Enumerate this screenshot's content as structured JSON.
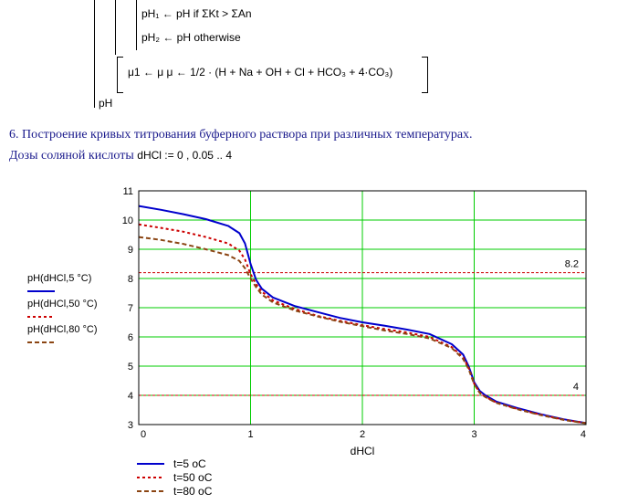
{
  "formula": {
    "line1": "pH₁ ← pH   if   ΣKt > ΣAn",
    "line2": "pH₂ ← pH   otherwise",
    "line3": "μ1 ← μ   μ ← 1/2 · (H + Na + OH + Cl + HCO₃ + 4·CO₃)",
    "result": "pH"
  },
  "section": {
    "heading": "6. Построение кривых титрования буферного раствора при различных температурах.",
    "doses_label": "Дозы соляной кислоты",
    "doses_math": "dHCl := 0 , 0.05 .. 4"
  },
  "colors": {
    "grid": "#00cc00",
    "series_5": "#0000cc",
    "series_50": "#cc0000",
    "series_80": "#8b4513",
    "ref_line": "#cc0000"
  },
  "chart_data": {
    "type": "line",
    "xlabel": "dHCl",
    "ylabel": "",
    "xlim": [
      0,
      4
    ],
    "ylim": [
      3,
      11
    ],
    "x_ticks": [
      "0",
      "1",
      "2",
      "3",
      "4"
    ],
    "y_ticks": [
      "3",
      "4",
      "5",
      "6",
      "7",
      "8",
      "9",
      "10",
      "11"
    ],
    "grid": true,
    "y_trace_labels": [
      "pH(dHCl,5 °C)",
      "pH(dHCl,50 °C)",
      "pH(dHCl,80 °C)"
    ],
    "legend_position": "bottom-left",
    "legend_labels": [
      "t=5 oC",
      "t=50 oC",
      "t=80 oC"
    ],
    "reference_lines": [
      {
        "y": 8.2,
        "label": "8.2"
      },
      {
        "y": 4,
        "label": "4"
      }
    ],
    "x": [
      0,
      0.2,
      0.4,
      0.6,
      0.8,
      0.9,
      0.95,
      1.0,
      1.05,
      1.1,
      1.2,
      1.4,
      1.6,
      1.8,
      2.0,
      2.2,
      2.4,
      2.6,
      2.8,
      2.9,
      2.95,
      3.0,
      3.05,
      3.1,
      3.2,
      3.4,
      3.6,
      3.8,
      4.0
    ],
    "series": [
      {
        "name": "t=5 oC",
        "values": [
          10.48,
          10.35,
          10.2,
          10.03,
          9.8,
          9.55,
          9.2,
          8.5,
          7.95,
          7.65,
          7.35,
          7.05,
          6.85,
          6.65,
          6.5,
          6.38,
          6.25,
          6.1,
          5.75,
          5.4,
          5.0,
          4.45,
          4.15,
          4.0,
          3.78,
          3.55,
          3.35,
          3.18,
          3.05
        ]
      },
      {
        "name": "t=50 oC",
        "values": [
          9.85,
          9.73,
          9.6,
          9.42,
          9.2,
          8.95,
          8.65,
          8.15,
          7.8,
          7.55,
          7.25,
          6.95,
          6.72,
          6.55,
          6.4,
          6.27,
          6.15,
          6.0,
          5.65,
          5.3,
          4.95,
          4.4,
          4.1,
          3.95,
          3.75,
          3.52,
          3.33,
          3.17,
          3.05
        ]
      },
      {
        "name": "t=80 oC",
        "values": [
          9.42,
          9.32,
          9.18,
          9.0,
          8.8,
          8.6,
          8.35,
          8.0,
          7.7,
          7.45,
          7.18,
          6.9,
          6.7,
          6.52,
          6.37,
          6.22,
          6.1,
          5.95,
          5.62,
          5.25,
          4.9,
          4.38,
          4.08,
          3.94,
          3.74,
          3.51,
          3.32,
          3.16,
          3.04
        ]
      }
    ]
  }
}
